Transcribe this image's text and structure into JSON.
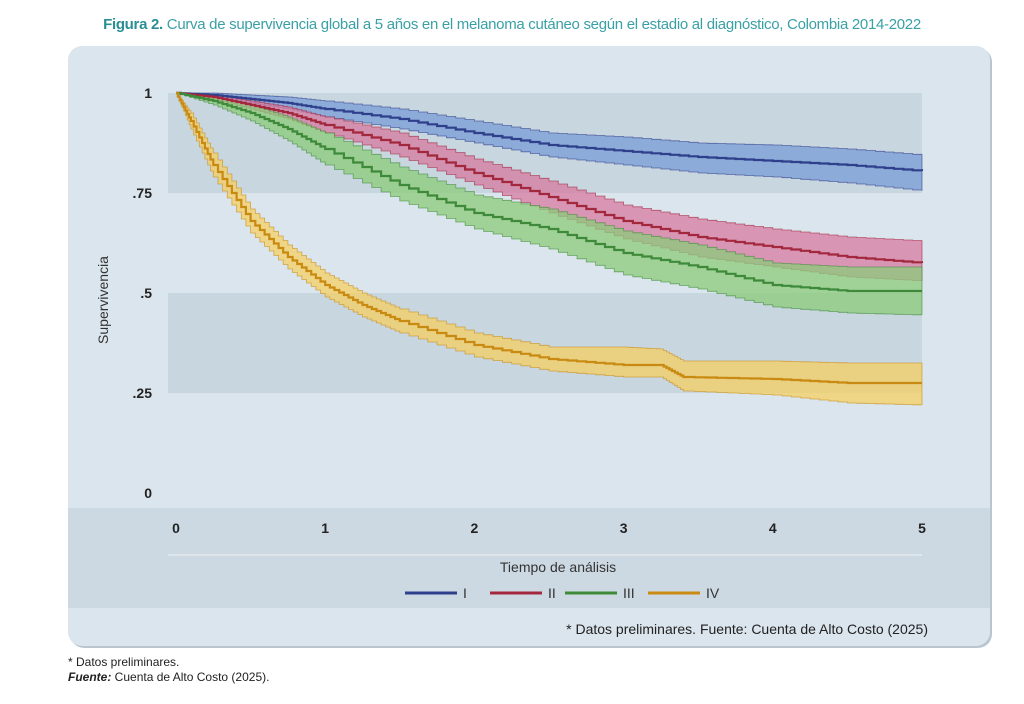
{
  "figure": {
    "label": "Figura 2.",
    "title": "Curva de supervivencia global a 5 años en el melanoma cutáneo según el estadio al diagnóstico, Colombia 2014-2022"
  },
  "colors": {
    "panel_bg": "#dbe5ed",
    "band_dark": "#c8d6e0",
    "axis_bg": "#cdd9e2",
    "footer_bg": "#dbe5ed",
    "series": {
      "I": "#2e3f8c",
      "II": "#a3283e",
      "III": "#3e8a3a",
      "IV": "#c98a12"
    },
    "bands": {
      "I": "#7a9cd6",
      "II": "#d77aa0",
      "III": "#8ccb7a",
      "IV": "#f5cf63"
    }
  },
  "chart_data": {
    "type": "line",
    "xlabel": "Tiempo de análisis",
    "ylabel": "Supervivencia",
    "xlim": [
      0,
      5
    ],
    "ylim": [
      0,
      1
    ],
    "x_ticks": [
      "0",
      "1",
      "2",
      "3",
      "4",
      "5"
    ],
    "y_ticks": [
      "0",
      ".25",
      ".5",
      ".75",
      "1"
    ],
    "legend_position": "bottom",
    "series": [
      {
        "name": "I",
        "x": [
          0,
          0.25,
          0.5,
          0.75,
          1,
          1.5,
          2,
          2.5,
          3,
          3.5,
          4,
          4.5,
          5
        ],
        "y": [
          1,
          0.995,
          0.985,
          0.975,
          0.96,
          0.935,
          0.9,
          0.87,
          0.855,
          0.84,
          0.83,
          0.82,
          0.805
        ],
        "lower": [
          1,
          0.99,
          0.975,
          0.96,
          0.94,
          0.91,
          0.875,
          0.84,
          0.82,
          0.8,
          0.79,
          0.775,
          0.755
        ],
        "upper": [
          1,
          1,
          0.995,
          0.99,
          0.98,
          0.96,
          0.93,
          0.9,
          0.89,
          0.875,
          0.87,
          0.86,
          0.845
        ]
      },
      {
        "name": "II",
        "x": [
          0,
          0.25,
          0.5,
          0.75,
          1,
          1.5,
          2,
          2.5,
          3,
          3.5,
          4,
          4.5,
          5
        ],
        "y": [
          1,
          0.99,
          0.97,
          0.95,
          0.92,
          0.87,
          0.8,
          0.74,
          0.68,
          0.64,
          0.615,
          0.59,
          0.575
        ],
        "lower": [
          1,
          0.985,
          0.96,
          0.935,
          0.9,
          0.84,
          0.77,
          0.7,
          0.635,
          0.59,
          0.565,
          0.54,
          0.53
        ],
        "upper": [
          1,
          0.995,
          0.98,
          0.965,
          0.94,
          0.9,
          0.835,
          0.78,
          0.72,
          0.685,
          0.66,
          0.64,
          0.63
        ]
      },
      {
        "name": "III",
        "x": [
          0,
          0.25,
          0.5,
          0.75,
          1,
          1.5,
          2,
          2.5,
          3,
          3.5,
          4,
          4.5,
          5
        ],
        "y": [
          1,
          0.98,
          0.95,
          0.91,
          0.86,
          0.77,
          0.7,
          0.66,
          0.6,
          0.565,
          0.52,
          0.505,
          0.505
        ],
        "lower": [
          1,
          0.97,
          0.93,
          0.88,
          0.82,
          0.73,
          0.66,
          0.61,
          0.545,
          0.51,
          0.465,
          0.45,
          0.445
        ],
        "upper": [
          1,
          0.99,
          0.97,
          0.94,
          0.9,
          0.815,
          0.745,
          0.71,
          0.655,
          0.62,
          0.575,
          0.565,
          0.565
        ]
      },
      {
        "name": "IV",
        "x": [
          0,
          0.1,
          0.25,
          0.5,
          0.75,
          1,
          1.25,
          1.5,
          2,
          2.5,
          3,
          3.25,
          3.4,
          4,
          4.5,
          5
        ],
        "y": [
          1,
          0.93,
          0.82,
          0.68,
          0.59,
          0.52,
          0.47,
          0.43,
          0.37,
          0.335,
          0.32,
          0.32,
          0.29,
          0.285,
          0.275,
          0.275
        ],
        "lower": [
          1,
          0.91,
          0.79,
          0.65,
          0.56,
          0.49,
          0.44,
          0.4,
          0.34,
          0.305,
          0.29,
          0.29,
          0.255,
          0.245,
          0.225,
          0.22
        ],
        "upper": [
          1,
          0.95,
          0.85,
          0.71,
          0.62,
          0.55,
          0.5,
          0.46,
          0.4,
          0.365,
          0.365,
          0.36,
          0.33,
          0.33,
          0.325,
          0.325
        ]
      }
    ],
    "annotations": {
      "preliminary": "* Datos preliminares.",
      "source": "Fuente: Cuenta de Alto Costo (2025)"
    }
  },
  "notes": {
    "preliminary": "* Datos preliminares.",
    "source_label": "Fuente:",
    "source_text": " Cuenta de Alto Costo (2025)."
  }
}
